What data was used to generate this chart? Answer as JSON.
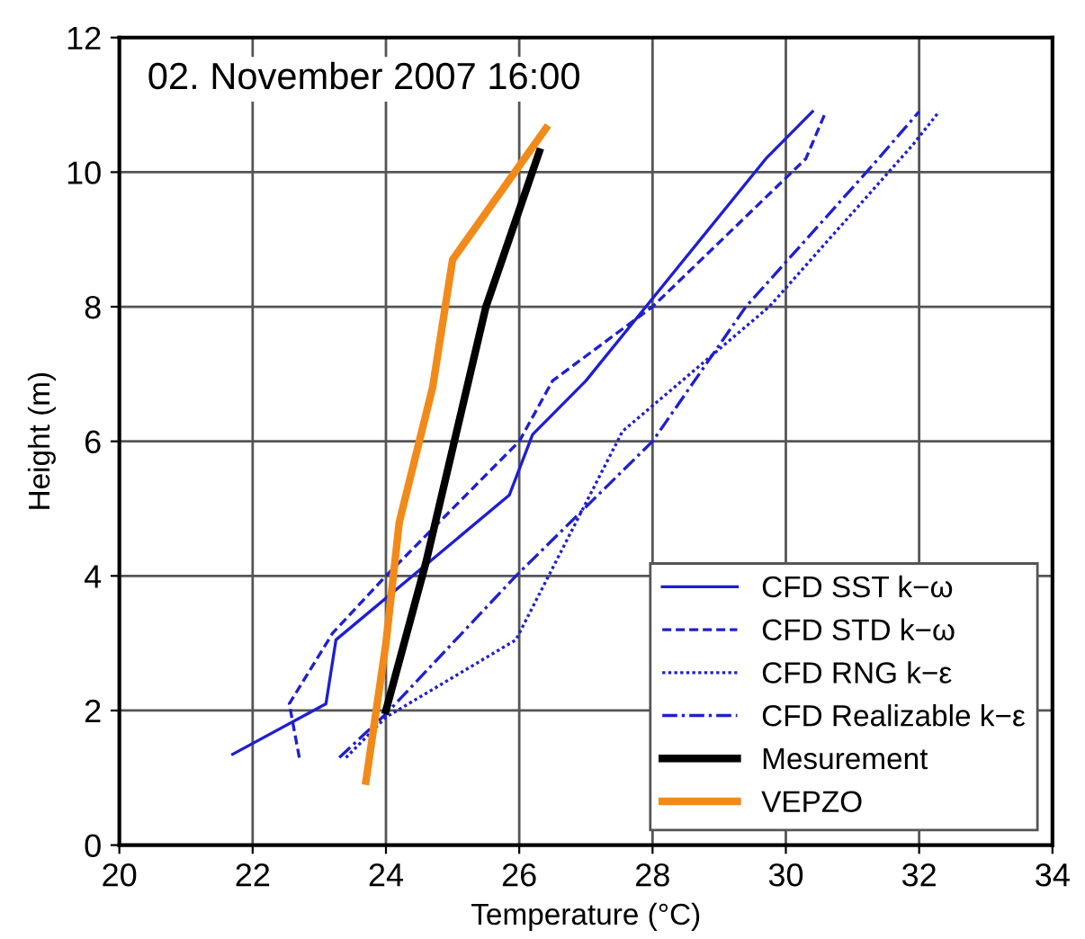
{
  "chart_data": {
    "type": "line",
    "xlabel": "Temperature (°C)",
    "ylabel": "Height (m)",
    "xlim": [
      20,
      34
    ],
    "ylim": [
      0,
      12
    ],
    "xticks": [
      20,
      22,
      24,
      26,
      28,
      30,
      32,
      34
    ],
    "yticks": [
      0,
      2,
      4,
      6,
      8,
      10,
      12
    ],
    "grid": true,
    "legend": "bottom right",
    "annotations": [
      "02. November 2007 16:00"
    ],
    "series": [
      {
        "name": "CFD SST k−ω",
        "color": "#1f1fd0",
        "line_style": "solid",
        "x": [
          21.7,
          23.1,
          23.25,
          25.85,
          26.2,
          27.0,
          27.9,
          29.7,
          30.4
        ],
        "values": [
          1.35,
          2.1,
          3.05,
          5.2,
          6.1,
          6.9,
          8.0,
          10.2,
          10.9
        ]
      },
      {
        "name": "CFD STD k−ω",
        "color": "#1f1fd0",
        "line_style": "dashed",
        "x": [
          22.7,
          22.55,
          23.2,
          24.0,
          26.0,
          26.5,
          28.0,
          30.3,
          30.6
        ],
        "values": [
          1.3,
          2.1,
          3.15,
          4.0,
          6.0,
          6.9,
          8.0,
          10.2,
          10.9
        ]
      },
      {
        "name": "CFD RNG k−ε",
        "color": "#1f1fd0",
        "line_style": "dotted",
        "x": [
          23.4,
          24.0,
          25.95,
          27.55,
          29.75,
          31.9,
          32.3
        ],
        "values": [
          1.3,
          1.9,
          3.05,
          6.15,
          8.0,
          10.4,
          10.9
        ]
      },
      {
        "name": "CFD Realizable k−ε",
        "color": "#1f1fd0",
        "line_style": "dashdot",
        "x": [
          23.3,
          24.0,
          25.95,
          28.0,
          29.4,
          31.3,
          32.0
        ],
        "values": [
          1.3,
          1.95,
          4.0,
          6.0,
          8.0,
          10.1,
          10.9
        ]
      },
      {
        "name": "Mesurement",
        "color": "#000000",
        "line_style": "solid",
        "x": [
          24.0,
          24.6,
          25.5,
          26.3
        ],
        "values": [
          2.0,
          4.2,
          8.0,
          10.3
        ]
      },
      {
        "name": "VEPZO",
        "color": "#f28a1a",
        "line_style": "solid",
        "x": [
          23.7,
          24.0,
          24.2,
          24.7,
          25.0,
          26.4
        ],
        "values": [
          0.95,
          3.0,
          4.8,
          6.8,
          8.7,
          10.65
        ]
      }
    ]
  }
}
